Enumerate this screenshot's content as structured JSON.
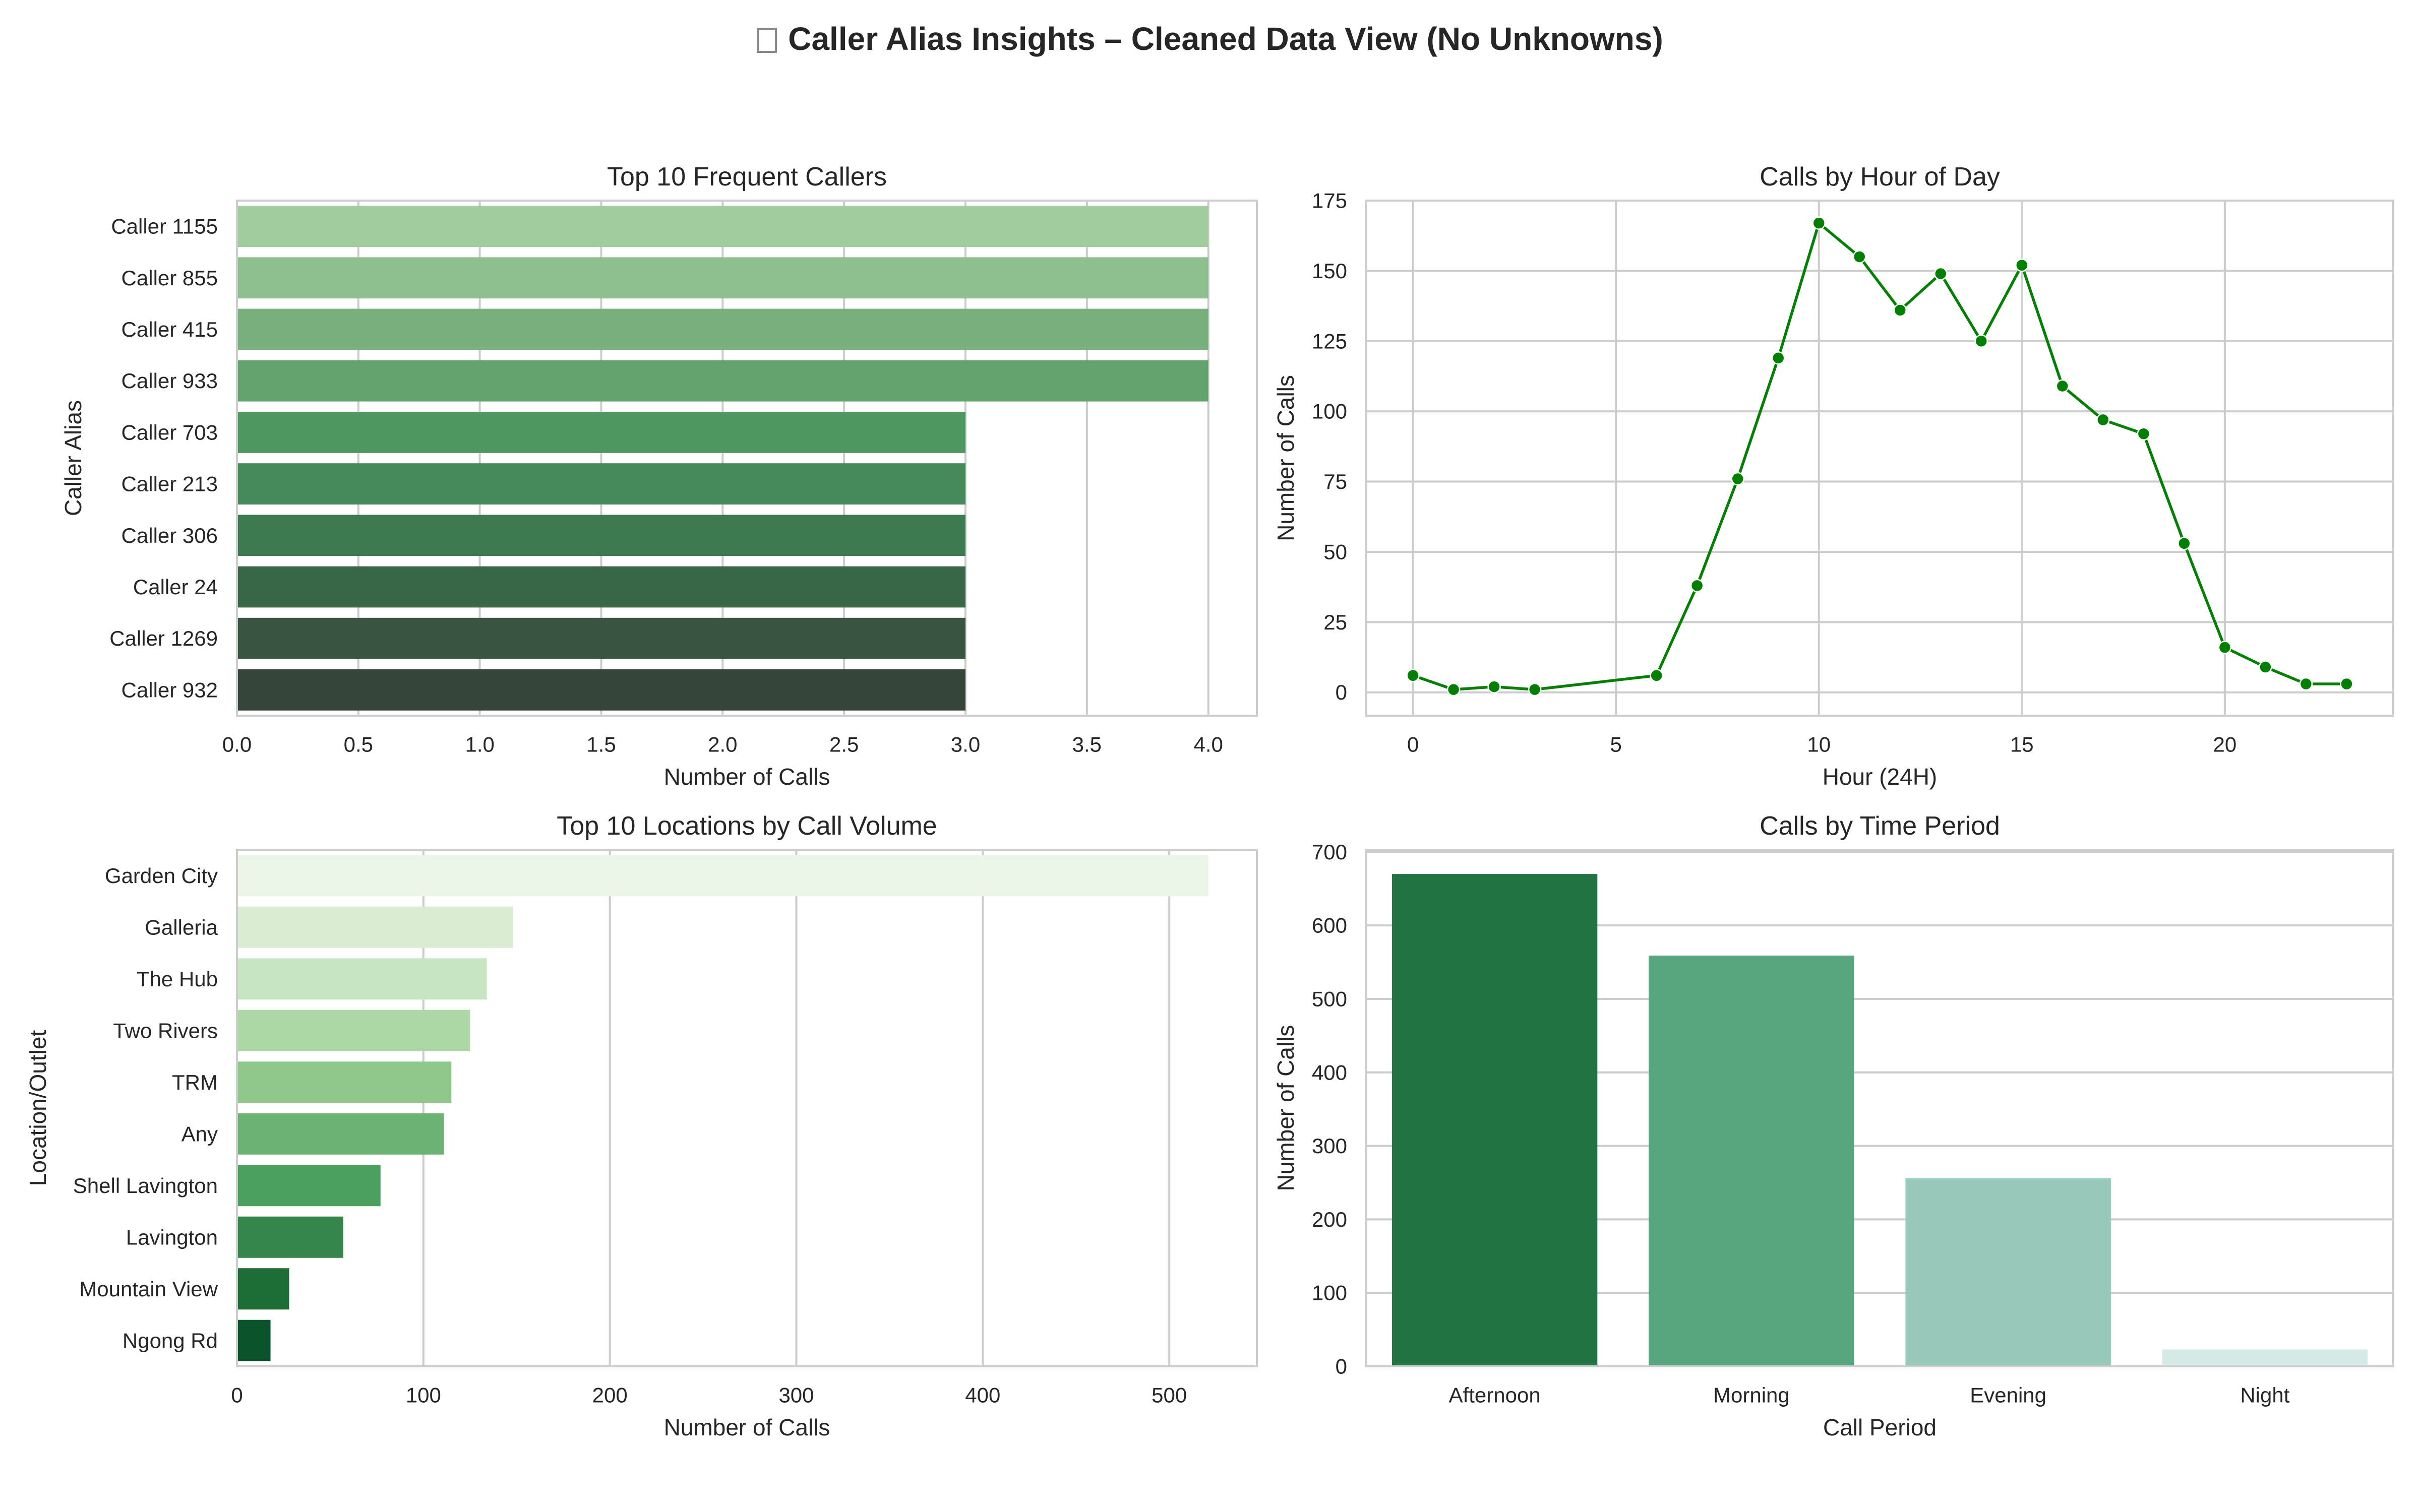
{
  "figure": {
    "title": "Caller Alias Insights – Cleaned Data View (No Unknowns)",
    "title_icon": "missing-glyph-box"
  },
  "chart_data": [
    {
      "id": "top-callers",
      "type": "bar",
      "orientation": "horizontal",
      "title": "Top 10 Frequent Callers",
      "xlabel": "Number of Calls",
      "ylabel": "Caller Alias",
      "categories": [
        "Caller 1155",
        "Caller 855",
        "Caller 415",
        "Caller 933",
        "Caller 703",
        "Caller 213",
        "Caller 306",
        "Caller 24",
        "Caller 1269",
        "Caller 932"
      ],
      "values": [
        4,
        4,
        4,
        4,
        3,
        3,
        3,
        3,
        3,
        3
      ],
      "xlim": [
        0,
        4.2
      ],
      "xticks": [
        "0.0",
        "0.5",
        "1.0",
        "1.5",
        "2.0",
        "2.5",
        "3.0",
        "3.5",
        "4.0"
      ],
      "colors": [
        "#a1cc9c",
        "#8dbf8d",
        "#77b07d",
        "#62a36d",
        "#4d965f",
        "#448957",
        "#3d7a4f",
        "#3a6747",
        "#395641",
        "#37463b"
      ],
      "grid": "vertical"
    },
    {
      "id": "calls-by-hour",
      "type": "line",
      "title": "Calls by Hour of Day",
      "xlabel": "Hour (24H)",
      "ylabel": "Number of Calls",
      "x": [
        0,
        1,
        2,
        3,
        6,
        7,
        8,
        9,
        10,
        11,
        12,
        13,
        14,
        15,
        16,
        17,
        18,
        19,
        20,
        21,
        22,
        23
      ],
      "y": [
        6,
        1,
        2,
        1,
        6,
        38,
        76,
        119,
        167,
        155,
        136,
        149,
        125,
        152,
        109,
        97,
        92,
        53,
        16,
        9,
        3,
        3
      ],
      "xlim": [
        -1.15,
        24.15
      ],
      "ylim": [
        -8.3,
        175
      ],
      "xticks": [
        0,
        5,
        10,
        15,
        20
      ],
      "yticks": [
        0,
        25,
        50,
        75,
        100,
        125,
        150,
        175
      ],
      "color": "#008000",
      "grid": "both",
      "marker": "circle"
    },
    {
      "id": "top-locations",
      "type": "bar",
      "orientation": "horizontal",
      "title": "Top 10 Locations by Call Volume",
      "xlabel": "Number of Calls",
      "ylabel": "Location/Outlet",
      "categories": [
        "Garden City",
        "Galleria",
        "The Hub",
        "Two Rivers",
        "TRM",
        "Any",
        "Shell Lavington",
        "Lavington",
        "Mountain View",
        "Ngong Rd"
      ],
      "values": [
        521,
        148,
        134,
        125,
        115,
        111,
        77,
        57,
        28,
        18
      ],
      "xlim": [
        0,
        547
      ],
      "xticks": [
        0,
        100,
        200,
        300,
        400,
        500
      ],
      "colors": [
        "#ebf5e8",
        "#dbeed5",
        "#c7e5c0",
        "#acd8a5",
        "#8ec88b",
        "#6cb274",
        "#4a9f5e",
        "#34864c",
        "#1d6d37",
        "#0b542b"
      ],
      "grid": "vertical"
    },
    {
      "id": "calls-by-period",
      "type": "bar",
      "orientation": "vertical",
      "title": "Calls by Time Period",
      "xlabel": "Call Period",
      "ylabel": "Number of Calls",
      "categories": [
        "Afternoon",
        "Morning",
        "Evening",
        "Night"
      ],
      "values": [
        670,
        559,
        256,
        23
      ],
      "ylim": [
        0,
        703
      ],
      "yticks": [
        0,
        100,
        200,
        300,
        400,
        500,
        600,
        700
      ],
      "colors": [
        "#227543",
        "#57a67e",
        "#97cabb",
        "#d5e9e7"
      ],
      "grid": "horizontal"
    }
  ]
}
